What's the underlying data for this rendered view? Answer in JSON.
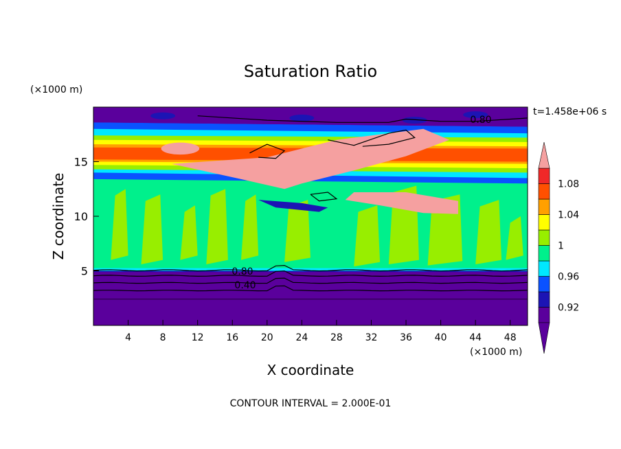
{
  "chart_data": {
    "type": "heatmap",
    "title": "Saturation Ratio",
    "xlabel": "X coordinate",
    "ylabel": "Z coordinate",
    "x_unit": "(×1000 m)",
    "y_unit": "(×1000 m)",
    "time_label": "t=1.458e+06 s",
    "footer": "CONTOUR INTERVAL = 2.000E-01",
    "xlim": [
      0,
      50
    ],
    "ylim": [
      0,
      20
    ],
    "x_ticks": [
      4,
      8,
      12,
      16,
      20,
      24,
      28,
      32,
      36,
      40,
      44,
      48
    ],
    "y_ticks": [
      5,
      10,
      15
    ],
    "colorbar": {
      "levels": [
        0.9,
        0.92,
        0.94,
        0.96,
        0.98,
        1.0,
        1.02,
        1.04,
        1.06,
        1.08,
        1.1
      ],
      "tick_labels": [
        "0.92",
        "0.96",
        "1",
        "1.04",
        "1.08"
      ],
      "tick_values": [
        0.92,
        0.96,
        1.0,
        1.04,
        1.08
      ],
      "colors": [
        "#5a009c",
        "#1c14b4",
        "#0a52ff",
        "#00e8ff",
        "#00f08c",
        "#98ee00",
        "#ffff00",
        "#ffa000",
        "#ff5000",
        "#f02828",
        "#f5a0a0"
      ]
    },
    "contour_labels": [
      "0.80",
      "0.80",
      "0.40"
    ],
    "regions": [
      {
        "band": "lower",
        "z_range": [
          0,
          5.2
        ],
        "value": "< 0.90"
      },
      {
        "band": "middle",
        "z_range": [
          5.2,
          13.5
        ],
        "value": "≈ 0.98–1.02"
      },
      {
        "band": "upper",
        "z_range": [
          13.5,
          18
        ],
        "value": "0.90–1.10+"
      },
      {
        "band": "top",
        "z_range": [
          18,
          20
        ],
        "value": "< 0.90"
      }
    ]
  }
}
